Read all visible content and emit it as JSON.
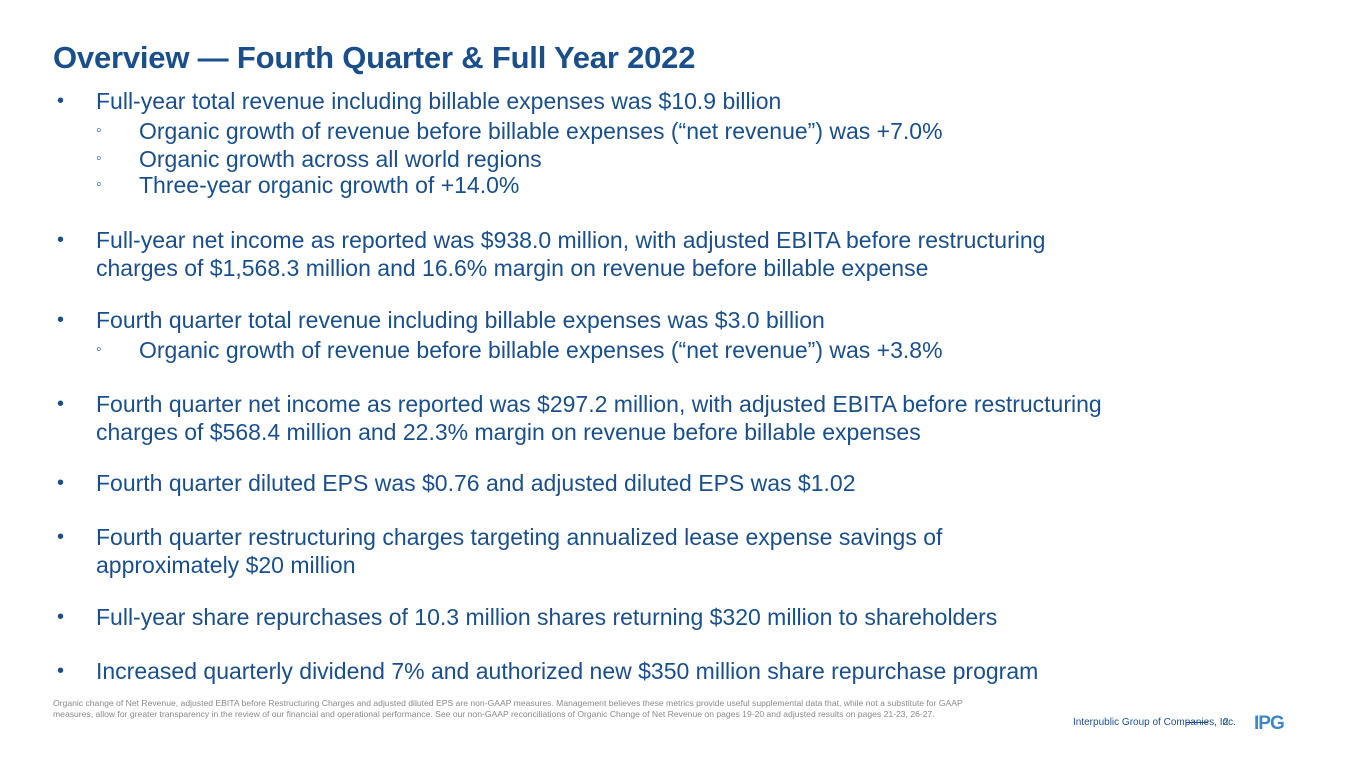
{
  "title": "Overview — Fourth Quarter & Full Year 2022",
  "bullet_marker": "•",
  "sub_marker": "◦",
  "bullets": [
    {
      "lines": [
        "Full-year total revenue including billable expenses was $10.9 billion"
      ],
      "subs": [
        "Organic growth of revenue before billable expenses (“net revenue”) was +7.0%",
        "Organic growth across all world regions",
        "Three-year organic growth of +14.0%"
      ]
    },
    {
      "lines": [
        "Full-year net income as reported was $938.0 million, with adjusted EBITA before restructuring",
        "charges of $1,568.3 million and 16.6% margin on revenue before billable expense"
      ]
    },
    {
      "lines": [
        "Fourth quarter total revenue including billable expenses was $3.0 billion"
      ],
      "subs": [
        "Organic growth of revenue before billable expenses (“net revenue”) was +3.8%"
      ]
    },
    {
      "lines": [
        "Fourth quarter net income as reported was $297.2 million, with adjusted EBITA before restructuring",
        "charges of $568.4 million and 22.3% margin on revenue before billable expenses"
      ]
    },
    {
      "lines": [
        "Fourth quarter diluted EPS was $0.76 and adjusted diluted EPS was $1.02"
      ]
    },
    {
      "lines": [
        "Fourth quarter restructuring charges targeting annualized lease expense savings of",
        "approximately $20 million"
      ]
    },
    {
      "lines": [
        "Full-year share repurchases of 10.3 million shares returning $320 million to shareholders"
      ]
    },
    {
      "lines": [
        "Increased quarterly dividend 7% and authorized new $350 million share repurchase program"
      ]
    }
  ],
  "footnote": "Organic change of Net Revenue, adjusted EBITA before Restructuring Charges and adjusted diluted EPS are non-GAAP measures. Management believes these metrics provide useful supplemental data that, while not a substitute for GAAP measures, allow for greater transparency in the review of our financial and operational performance. See our non-GAAP reconciliations of Organic Change of Net Revenue on pages 19-20 and adjusted results on pages 21-23, 26-27.",
  "footer": {
    "company": "Interpublic Group of Companies, Inc.",
    "page": "2",
    "logo": "IPG"
  },
  "colors": {
    "primary": "#1a4f8b",
    "logo": "#3f86c4",
    "footnote": "#8a8a8a"
  }
}
